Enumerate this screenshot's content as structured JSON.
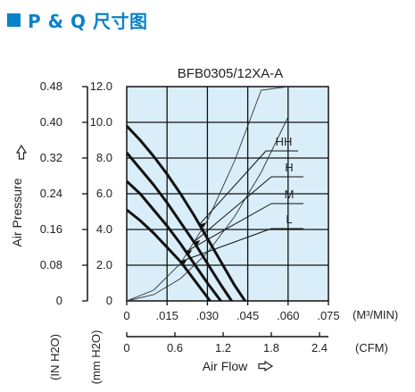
{
  "header": {
    "title": "P & Q 尺寸图"
  },
  "chart_data": {
    "type": "line",
    "title": "BFB0305/12XA-A",
    "pressure_in_h2o_ticks": [
      "0.48",
      "0.40",
      "0.32",
      "0.24",
      "0.16",
      "0.08",
      "0"
    ],
    "pressure_mm_h2o_ticks": [
      "12.0",
      "10.0",
      "8.0",
      "6.0",
      "4.0",
      "2.0",
      "0"
    ],
    "flow_m3min_ticks": [
      "0",
      ".015",
      ".030",
      ".045",
      ".060",
      ".075"
    ],
    "flow_cfm_ticks": [
      "0",
      "0.6",
      "1.2",
      "1.8",
      "2.4"
    ],
    "flow_m3min_unit": "(M³/MIN)",
    "flow_cfm_unit": "(CFM)",
    "ylabel": "Air Pressure",
    "ylabel_unit_in": "(IN H2O)",
    "ylabel_unit_mm": "(mm H2O)",
    "xlabel": "Air Flow",
    "xlim": [
      0,
      0.075
    ],
    "ylim": [
      0,
      12
    ],
    "grid": true,
    "background_color": "#d9eef8",
    "series": [
      {
        "name": "HH",
        "x": [
          0,
          0.005,
          0.01,
          0.015,
          0.02,
          0.025,
          0.03,
          0.035,
          0.04,
          0.044
        ],
        "y": [
          9.8,
          9.0,
          8.1,
          7.1,
          6.0,
          4.8,
          3.5,
          2.2,
          0.9,
          0
        ]
      },
      {
        "name": "H",
        "x": [
          0,
          0.005,
          0.01,
          0.015,
          0.02,
          0.025,
          0.03,
          0.035,
          0.039
        ],
        "y": [
          8.3,
          7.4,
          6.5,
          5.5,
          4.4,
          3.3,
          2.1,
          0.9,
          0
        ]
      },
      {
        "name": "M",
        "x": [
          0,
          0.005,
          0.01,
          0.015,
          0.02,
          0.025,
          0.03,
          0.035
        ],
        "y": [
          6.7,
          6.0,
          5.1,
          4.2,
          3.2,
          2.1,
          1.0,
          0
        ]
      },
      {
        "name": "L",
        "x": [
          0,
          0.005,
          0.01,
          0.015,
          0.02,
          0.025,
          0.031
        ],
        "y": [
          5.1,
          4.5,
          3.8,
          3.0,
          2.2,
          1.2,
          0
        ]
      }
    ],
    "impedance_curves": [
      {
        "x": [
          0,
          0.01,
          0.02,
          0.03,
          0.04,
          0.05,
          0.06
        ],
        "y": [
          0,
          0.35,
          1.25,
          2.7,
          4.7,
          7.2,
          10.3
        ]
      },
      {
        "x": [
          0,
          0.01,
          0.02,
          0.03,
          0.04,
          0.05,
          0.06
        ],
        "y": [
          0,
          0.6,
          2.1,
          4.5,
          7.8,
          11.8,
          12
        ]
      }
    ],
    "annotations": [
      "HH",
      "H",
      "M",
      "L"
    ]
  }
}
